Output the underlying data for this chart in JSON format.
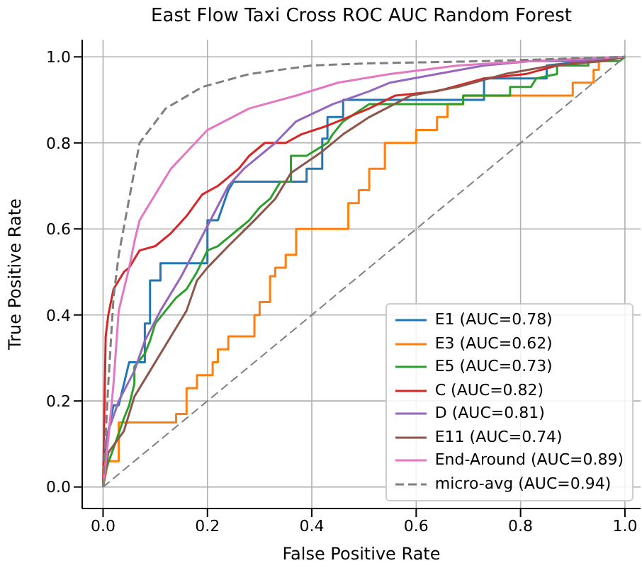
{
  "chart_data": {
    "type": "line",
    "title": "East Flow Taxi Cross ROC AUC Random Forest",
    "xlabel": "False Positive Rate",
    "ylabel": "True Positive Rate",
    "xlim": [
      -0.04,
      1.03
    ],
    "ylim": [
      -0.05,
      1.04
    ],
    "xticks": [
      {
        "value": 0,
        "label": "0.0"
      },
      {
        "value": 0.2,
        "label": "0.2"
      },
      {
        "value": 0.4,
        "label": "0.4"
      },
      {
        "value": 0.6,
        "label": "0.6"
      },
      {
        "value": 0.8,
        "label": "0.8"
      },
      {
        "value": 1,
        "label": "1.0"
      }
    ],
    "yticks": [
      {
        "value": 0,
        "label": "0.0"
      },
      {
        "value": 0.2,
        "label": "0.2"
      },
      {
        "value": 0.4,
        "label": "0.4"
      },
      {
        "value": 0.6,
        "label": "0.6"
      },
      {
        "value": 0.8,
        "label": "0.8"
      },
      {
        "value": 1,
        "label": "1.0"
      }
    ],
    "grid": true,
    "legend": "bottom right",
    "marker": "none",
    "line_style": "solid",
    "series": [
      {
        "name": "E1 (AUC=0.78)",
        "color": "#1f77b4",
        "x": [
          0,
          0.005,
          0.02,
          0.03,
          0.05,
          0.08,
          0.08,
          0.09,
          0.09,
          0.11,
          0.11,
          0.2,
          0.2,
          0.22,
          0.24,
          0.25,
          0.39,
          0.39,
          0.42,
          0.42,
          0.43,
          0.43,
          0.46,
          0.46,
          0.73,
          0.73,
          0.85,
          0.85,
          1
        ],
        "values": [
          0,
          0.1,
          0.19,
          0.19,
          0.29,
          0.29,
          0.38,
          0.38,
          0.48,
          0.48,
          0.52,
          0.52,
          0.62,
          0.62,
          0.69,
          0.71,
          0.71,
          0.74,
          0.74,
          0.81,
          0.81,
          0.86,
          0.86,
          0.9,
          0.9,
          0.95,
          0.95,
          0.98,
          1
        ]
      },
      {
        "name": "E3 (AUC=0.62)",
        "color": "#ff7f0e",
        "x": [
          0,
          0.01,
          0.03,
          0.03,
          0.14,
          0.14,
          0.16,
          0.16,
          0.18,
          0.18,
          0.21,
          0.21,
          0.22,
          0.22,
          0.24,
          0.24,
          0.29,
          0.29,
          0.3,
          0.3,
          0.32,
          0.32,
          0.33,
          0.33,
          0.35,
          0.35,
          0.37,
          0.37,
          0.47,
          0.47,
          0.49,
          0.49,
          0.51,
          0.51,
          0.54,
          0.54,
          0.6,
          0.6,
          0.64,
          0.64,
          0.66,
          0.66,
          0.69,
          0.69,
          0.9,
          0.9,
          0.94,
          0.94,
          0.95,
          0.95,
          1
        ],
        "values": [
          0,
          0.06,
          0.06,
          0.15,
          0.15,
          0.17,
          0.17,
          0.23,
          0.23,
          0.26,
          0.26,
          0.29,
          0.29,
          0.32,
          0.32,
          0.35,
          0.35,
          0.4,
          0.4,
          0.43,
          0.43,
          0.49,
          0.49,
          0.51,
          0.51,
          0.54,
          0.54,
          0.6,
          0.6,
          0.66,
          0.66,
          0.69,
          0.69,
          0.74,
          0.74,
          0.8,
          0.8,
          0.83,
          0.83,
          0.86,
          0.86,
          0.89,
          0.89,
          0.91,
          0.91,
          0.94,
          0.94,
          0.97,
          0.97,
          0.99,
          1
        ]
      },
      {
        "name": "E5 (AUC=0.73)",
        "color": "#2ca02c",
        "x": [
          0,
          0.005,
          0.02,
          0.04,
          0.05,
          0.06,
          0.06,
          0.08,
          0.09,
          0.1,
          0.12,
          0.14,
          0.16,
          0.18,
          0.2,
          0.22,
          0.24,
          0.26,
          0.28,
          0.3,
          0.32,
          0.34,
          0.36,
          0.36,
          0.39,
          0.43,
          0.44,
          0.46,
          0.51,
          0.69,
          0.69,
          0.78,
          0.78,
          0.82,
          0.83,
          0.87,
          0.87,
          0.93,
          0.93,
          0.99,
          1
        ],
        "values": [
          0,
          0.04,
          0.09,
          0.16,
          0.19,
          0.24,
          0.28,
          0.31,
          0.34,
          0.38,
          0.41,
          0.44,
          0.46,
          0.5,
          0.55,
          0.56,
          0.58,
          0.6,
          0.62,
          0.65,
          0.67,
          0.71,
          0.71,
          0.77,
          0.77,
          0.8,
          0.82,
          0.85,
          0.89,
          0.89,
          0.91,
          0.91,
          0.93,
          0.93,
          0.95,
          0.96,
          0.98,
          0.98,
          0.99,
          0.99,
          1
        ]
      },
      {
        "name": "C (AUC=0.82)",
        "color": "#d62728",
        "x": [
          0,
          0.005,
          0.01,
          0.02,
          0.04,
          0.05,
          0.06,
          0.07,
          0.1,
          0.13,
          0.16,
          0.19,
          0.22,
          0.24,
          0.26,
          0.28,
          0.31,
          0.35,
          0.38,
          0.43,
          0.47,
          0.51,
          0.56,
          0.64,
          0.73,
          0.81,
          0.87,
          0.93,
          1
        ],
        "values": [
          0,
          0.35,
          0.4,
          0.46,
          0.5,
          0.51,
          0.53,
          0.55,
          0.56,
          0.59,
          0.63,
          0.68,
          0.7,
          0.72,
          0.74,
          0.77,
          0.8,
          0.8,
          0.82,
          0.84,
          0.86,
          0.88,
          0.91,
          0.92,
          0.95,
          0.96,
          0.98,
          0.99,
          1
        ]
      },
      {
        "name": "D (AUC=0.81)",
        "color": "#9467bd",
        "x": [
          0,
          0.01,
          0.03,
          0.06,
          0.08,
          0.11,
          0.15,
          0.18,
          0.21,
          0.24,
          0.27,
          0.33,
          0.37,
          0.44,
          0.51,
          0.55,
          0.64,
          0.73,
          0.82,
          0.91,
          1
        ],
        "values": [
          0,
          0.13,
          0.2,
          0.27,
          0.34,
          0.41,
          0.49,
          0.56,
          0.63,
          0.7,
          0.74,
          0.8,
          0.85,
          0.89,
          0.92,
          0.94,
          0.96,
          0.98,
          0.99,
          0.99,
          1
        ]
      },
      {
        "name": "E11 (AUC=0.74)",
        "color": "#8c564b",
        "x": [
          0,
          0.01,
          0.04,
          0.06,
          0.09,
          0.13,
          0.16,
          0.18,
          0.2,
          0.24,
          0.29,
          0.33,
          0.36,
          0.42,
          0.46,
          0.51,
          0.59,
          0.68,
          0.77,
          0.86,
          0.96,
          1
        ],
        "values": [
          0,
          0.08,
          0.13,
          0.21,
          0.27,
          0.35,
          0.41,
          0.48,
          0.51,
          0.56,
          0.62,
          0.67,
          0.73,
          0.78,
          0.82,
          0.86,
          0.91,
          0.93,
          0.96,
          0.98,
          0.99,
          1
        ]
      },
      {
        "name": "End-Around (AUC=0.89)",
        "color": "#e377c2",
        "x": [
          0,
          0.01,
          0.02,
          0.03,
          0.05,
          0.06,
          0.07,
          0.13,
          0.2,
          0.28,
          0.37,
          0.45,
          0.55,
          0.68,
          0.82,
          1
        ],
        "values": [
          0,
          0.11,
          0.24,
          0.41,
          0.51,
          0.57,
          0.62,
          0.74,
          0.83,
          0.88,
          0.91,
          0.94,
          0.96,
          0.98,
          0.99,
          1
        ]
      },
      {
        "name": "micro-avg (AUC=0.94)",
        "color": "#7f7f7f",
        "line_style": "dashed",
        "x": [
          0,
          0.01,
          0.02,
          0.03,
          0.05,
          0.07,
          0.12,
          0.19,
          0.28,
          0.4,
          0.51,
          0.73,
          1
        ],
        "values": [
          0,
          0.24,
          0.44,
          0.54,
          0.67,
          0.8,
          0.88,
          0.93,
          0.96,
          0.98,
          0.985,
          0.99,
          1
        ]
      },
      {
        "color": "#808080",
        "line_style": "dashed",
        "x": [
          0,
          1
        ],
        "values": [
          0,
          1
        ]
      }
    ]
  }
}
